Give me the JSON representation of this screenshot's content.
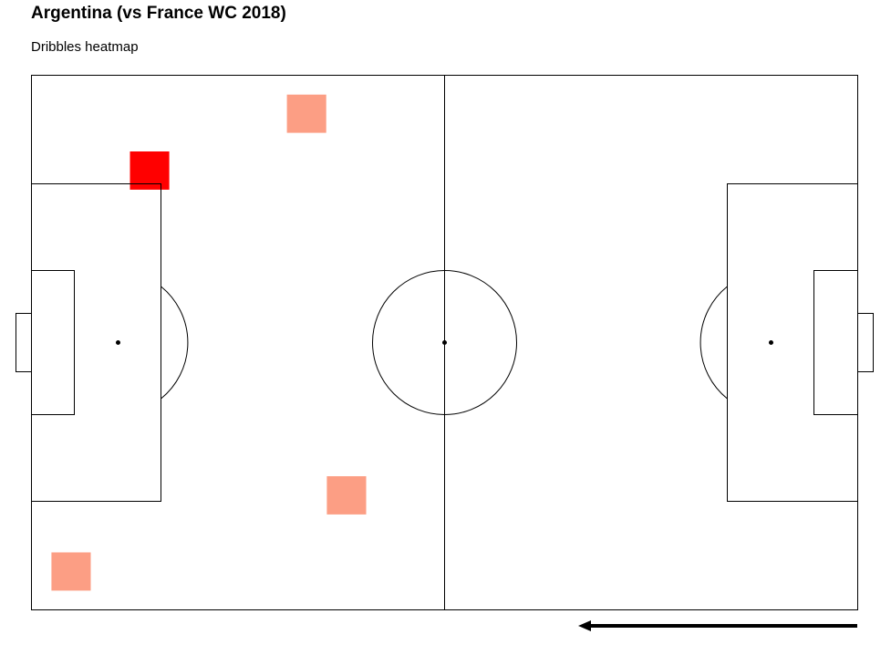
{
  "title": "Argentina (vs France WC 2018)",
  "subtitle": "Dribbles heatmap",
  "chart_data": {
    "type": "heatmap",
    "pitch": {
      "length": 120,
      "width": 80
    },
    "bin_size": {
      "x": 5.714,
      "y": 5.714
    },
    "xlim": [
      0,
      120
    ],
    "ylim": [
      0,
      80
    ],
    "bins": [
      {
        "x": 14.3,
        "y": 11.4,
        "count": 2,
        "color": "#ff0000"
      },
      {
        "x": 37.1,
        "y": 2.9,
        "count": 1,
        "color": "#fc9e84"
      },
      {
        "x": 42.9,
        "y": 60.0,
        "count": 1,
        "color": "#fc9e84"
      },
      {
        "x": 2.9,
        "y": 71.4,
        "count": 1,
        "color": "#fc9e84"
      }
    ],
    "direction": "left",
    "grid": false,
    "legend": "none"
  }
}
